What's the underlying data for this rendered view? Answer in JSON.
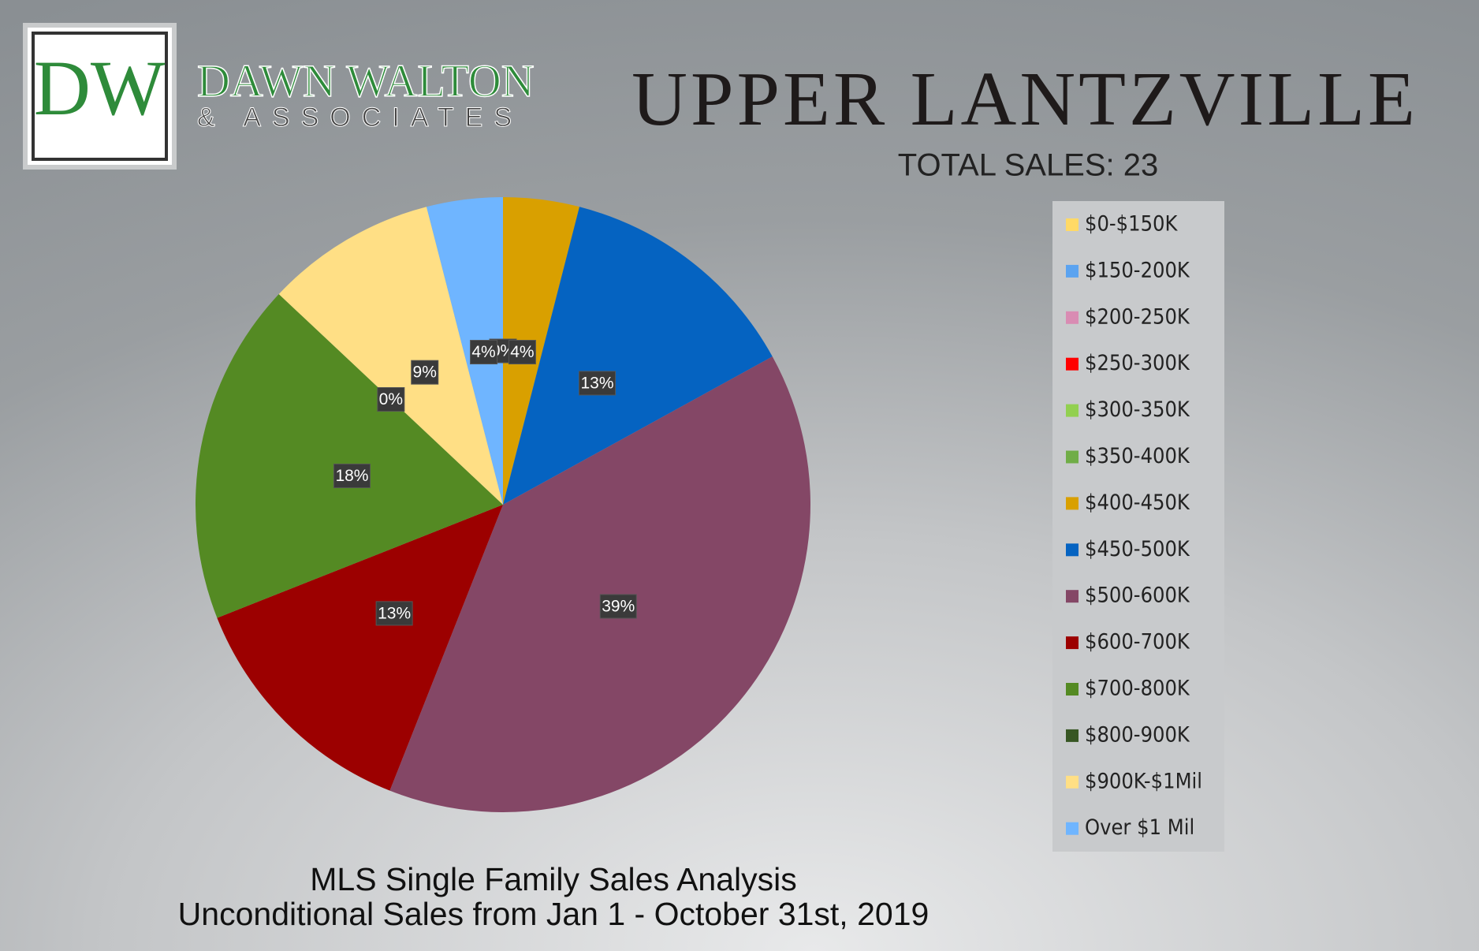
{
  "logo": {
    "monogram": "DW",
    "name": "DAWN WALTON",
    "tagline": "& ASSOCIATES"
  },
  "chart_data": {
    "type": "pie",
    "title": "Upper Lantzville",
    "subtitle": "TOTAL SALES: 23",
    "footnote": [
      "MLS Single Family Sales Analysis",
      "Unconditional Sales from Jan 1 - October 31st, 2019"
    ],
    "categories": [
      "$0-$150K",
      "$150-200K",
      "$200-250K",
      "$250-300K",
      "$300-350K",
      "$350-400K",
      "$400-450K",
      "$450-500K",
      "$500-600K",
      "$600-700K",
      "$700-800K",
      "$800-900K",
      "$900K-$1Mil",
      "Over $1 Mil"
    ],
    "values": [
      0,
      0,
      0,
      0,
      0,
      0,
      4,
      13,
      39,
      13,
      18,
      0,
      9,
      4
    ],
    "value_labels": [
      "0%",
      "0%",
      "0%",
      "0%",
      "0%",
      "0%",
      "4%",
      "13%",
      "39%",
      "13%",
      "18%",
      "0%",
      "9%",
      "4%"
    ],
    "colors": [
      "#ffd966",
      "#5ba3f0",
      "#d98cb3",
      "#ff0000",
      "#92d050",
      "#70ad47",
      "#d9a000",
      "#0563c1",
      "#844766",
      "#9c0000",
      "#548a23",
      "#375623",
      "#ffdf85",
      "#6fb5ff"
    ],
    "legend": "right"
  }
}
